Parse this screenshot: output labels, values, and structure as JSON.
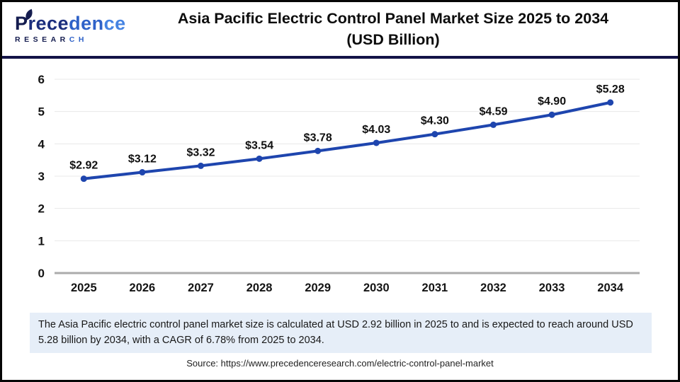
{
  "header": {
    "logo": {
      "brand": "Precedence",
      "brand_parts": [
        "P",
        "rece",
        "den",
        "ce"
      ],
      "subtitle": "RESEARCH",
      "subtitle_parts": [
        "RESEAR",
        "CH"
      ]
    },
    "title_line1": "Asia Pacific Electric Control Panel Market Size 2025 to 2034",
    "title_line2": "(USD Billion)"
  },
  "chart_data": {
    "type": "line",
    "title": "Asia Pacific Electric Control Panel Market Size 2025 to 2034 (USD Billion)",
    "categories": [
      "2025",
      "2026",
      "2027",
      "2028",
      "2029",
      "2030",
      "2031",
      "2032",
      "2033",
      "2034"
    ],
    "values": [
      2.92,
      3.12,
      3.32,
      3.54,
      3.78,
      4.03,
      4.3,
      4.59,
      4.9,
      5.28
    ],
    "point_labels": [
      "$2.92",
      "$3.12",
      "$3.32",
      "$3.54",
      "$3.78",
      "$4.03",
      "$4.30",
      "$4.59",
      "$4.90",
      "$5.28"
    ],
    "xlabel": "",
    "ylabel": "",
    "ylim": [
      0,
      6
    ],
    "yticks": [
      0,
      1,
      2,
      3,
      4,
      5,
      6
    ],
    "grid": true,
    "legend_position": "none",
    "line_color": "#1e45ae",
    "marker": "circle"
  },
  "footer": {
    "summary": "The Asia Pacific electric control panel market size is calculated at USD 2.92 billion in 2025 to and is expected to reach around USD 5.28 billion by 2034, with a CAGR of 6.78% from 2025 to 2034.",
    "source": "Source: https://www.precedenceresearch.com/electric-control-panel-market"
  },
  "colors": {
    "accent_line": "#1e45ae",
    "divider_navy": "#131347",
    "summary_bg": "#e6eef8",
    "logo_navy": "#141c4f",
    "logo_blue": "#2f62c8",
    "logo_light_blue": "#4583e2",
    "grid": "#e8e8e8",
    "zero_axis": "#ababab"
  }
}
